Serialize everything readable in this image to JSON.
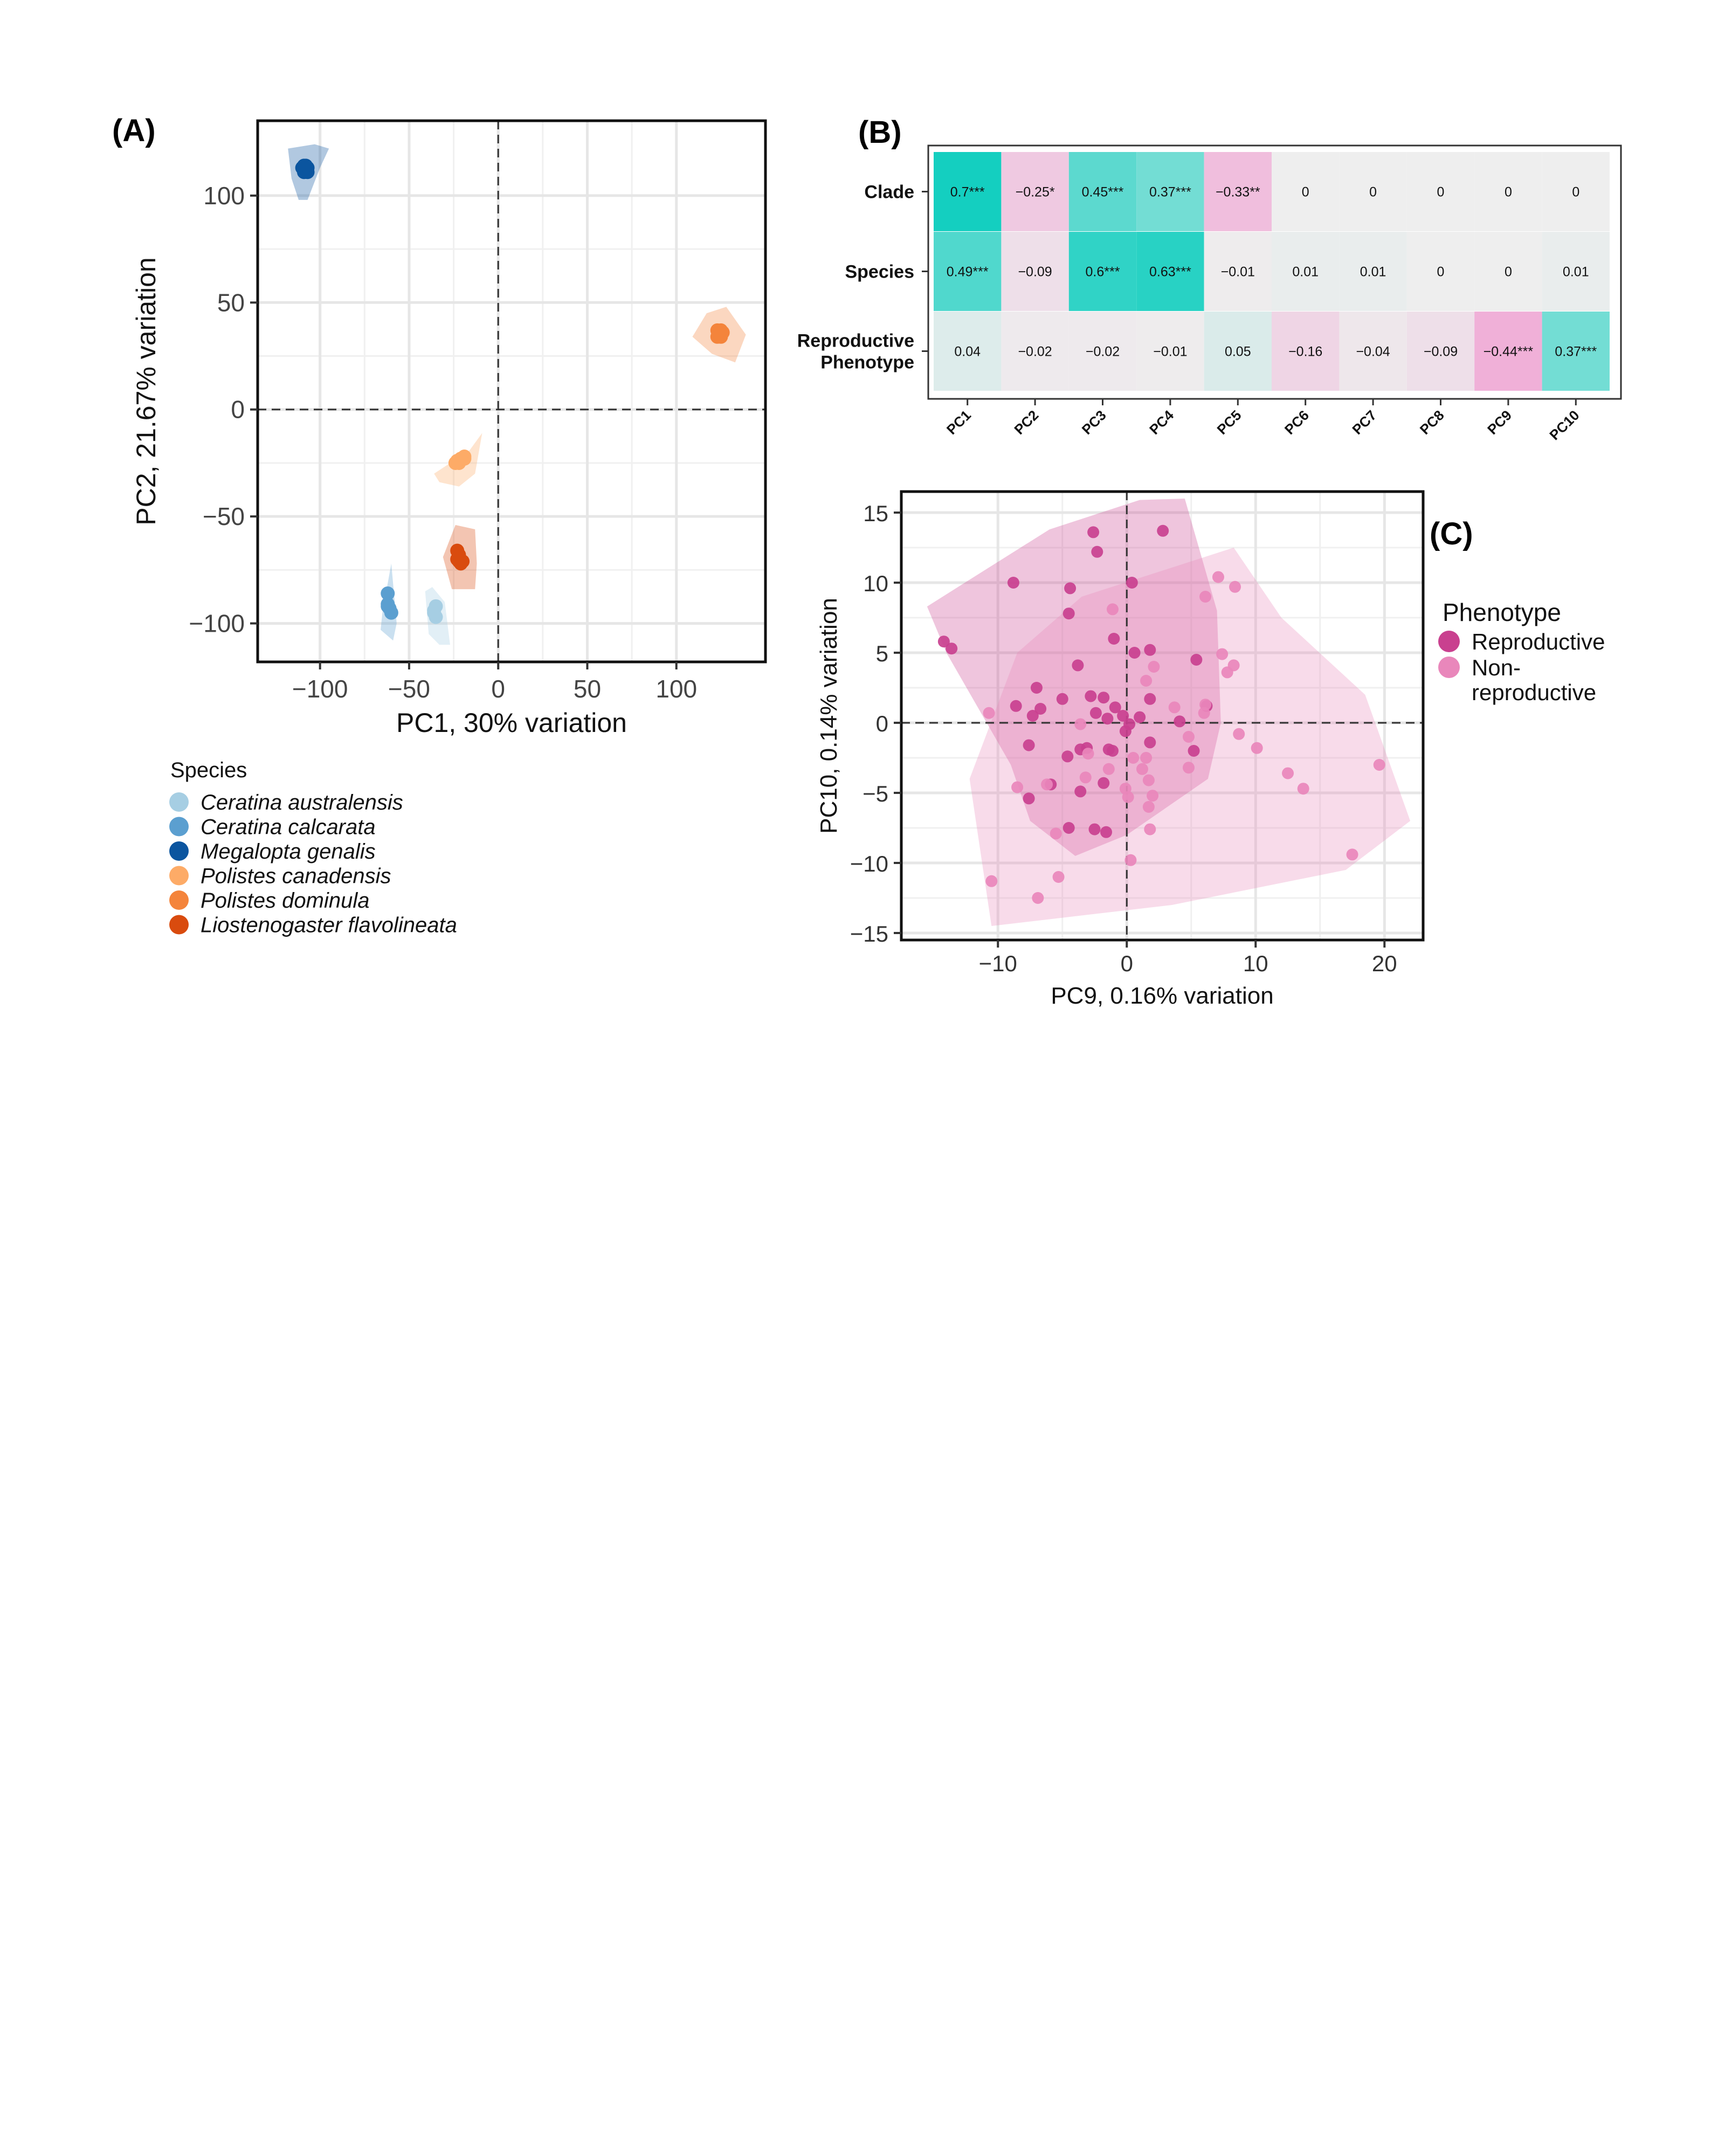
{
  "panel_labels": {
    "a": "(A)",
    "b": "(B)",
    "c": "(C)"
  },
  "chart_data": [
    {
      "panel": "A",
      "type": "scatter",
      "xlabel": "PC1, 30% variation",
      "ylabel": "PC2, 21.67% variation",
      "xlim": [
        -135,
        150
      ],
      "ylim": [
        -118,
        135
      ],
      "xticks": [
        -100,
        -50,
        0,
        50,
        100
      ],
      "xtick_labels": [
        "−100",
        "−50",
        "0",
        "50",
        "100"
      ],
      "yticks": [
        100,
        50,
        0,
        -50,
        -100
      ],
      "ytick_labels": [
        "100",
        "50",
        "0",
        "−50",
        "−100"
      ],
      "grid": true,
      "ref_lines": {
        "x": 0,
        "y": 0
      },
      "legend_title": "Species",
      "legend_position": "bottom-left",
      "series": [
        {
          "name": "Ceratina australensis",
          "color": "#a6cee3",
          "points": [
            [
              -36,
              -94
            ],
            [
              -35,
              -97
            ],
            [
              -35,
              -92
            ],
            [
              -36,
              -95
            ]
          ],
          "hull": [
            [
              -41,
              -85
            ],
            [
              -37,
              -83
            ],
            [
              -30,
              -90
            ],
            [
              -27,
              -110
            ],
            [
              -33,
              -110
            ],
            [
              -39,
              -105
            ]
          ]
        },
        {
          "name": "Ceratina calcarata",
          "color": "#5b9fd0",
          "points": [
            [
              -62,
              -86
            ],
            [
              -62,
              -91
            ],
            [
              -61,
              -93
            ],
            [
              -60,
              -95
            ],
            [
              -62,
              -92
            ]
          ],
          "hull": [
            [
              -60,
              -72
            ],
            [
              -57,
              -100
            ],
            [
              -59,
              -108
            ],
            [
              -66,
              -103
            ],
            [
              -65,
              -95
            ]
          ]
        },
        {
          "name": "Megalopta genalis",
          "color": "#0b559f",
          "points": [
            [
              -110,
              113
            ],
            [
              -107,
              113
            ],
            [
              -109,
              114
            ],
            [
              -107,
              111
            ],
            [
              -109,
              111
            ],
            [
              -108,
              114
            ]
          ],
          "hull": [
            [
              -118,
              122
            ],
            [
              -103,
              124
            ],
            [
              -95,
              122
            ],
            [
              -100,
              113
            ],
            [
              -107,
              98
            ],
            [
              -112,
              98
            ],
            [
              -116,
              108
            ]
          ]
        },
        {
          "name": "Polistes canadensis",
          "color": "#fdab67",
          "points": [
            [
              -19,
              -22
            ],
            [
              -22,
              -25
            ],
            [
              -24,
              -25
            ],
            [
              -19,
              -23
            ],
            [
              -23,
              -24
            ],
            [
              -21,
              -23
            ]
          ],
          "hull": [
            [
              -36,
              -30
            ],
            [
              -16,
              -19
            ],
            [
              -9,
              -11
            ],
            [
              -13,
              -30
            ],
            [
              -22,
              -36
            ],
            [
              -33,
              -34
            ]
          ]
        },
        {
          "name": "Polistes dominula",
          "color": "#f4843b",
          "points": [
            [
              123,
              37
            ],
            [
              125,
              34
            ],
            [
              124,
              36
            ],
            [
              126,
              36
            ],
            [
              123,
              34
            ],
            [
              125,
              37
            ]
          ],
          "hull": [
            [
              109,
              34
            ],
            [
              117,
              45
            ],
            [
              128,
              48
            ],
            [
              139,
              35
            ],
            [
              133,
              22
            ],
            [
              120,
              26
            ]
          ]
        },
        {
          "name": "Liostenogaster flavolineata",
          "color": "#d94b0e",
          "points": [
            [
              -23,
              -66
            ],
            [
              -22,
              -71
            ],
            [
              -21,
              -72
            ],
            [
              -23,
              -70
            ],
            [
              -22,
              -68
            ],
            [
              -20,
              -71
            ]
          ],
          "hull": [
            [
              -31,
              -69
            ],
            [
              -24,
              -54
            ],
            [
              -13,
              -56
            ],
            [
              -12,
              -72
            ],
            [
              -13,
              -84
            ],
            [
              -26,
              -84
            ]
          ]
        }
      ]
    },
    {
      "panel": "B",
      "type": "heatmap",
      "rows": [
        "Clade",
        "Species",
        "Reproductive Phenotype"
      ],
      "row_labels_display": [
        [
          "Clade"
        ],
        [
          "Species"
        ],
        [
          "Reproductive",
          "Phenotype"
        ]
      ],
      "columns": [
        "PC1",
        "PC2",
        "PC3",
        "PC4",
        "PC5",
        "PC6",
        "PC7",
        "PC8",
        "PC9",
        "PC10"
      ],
      "values": [
        [
          0.7,
          -0.25,
          0.45,
          0.37,
          -0.33,
          0,
          0,
          0,
          0,
          0
        ],
        [
          0.49,
          -0.09,
          0.6,
          0.63,
          -0.01,
          0.01,
          0.01,
          0,
          0,
          0.01
        ],
        [
          0.04,
          -0.02,
          -0.02,
          -0.01,
          0.05,
          -0.16,
          -0.04,
          -0.09,
          -0.44,
          0.37
        ]
      ],
      "labels": [
        [
          "0.7***",
          "−0.25*",
          "0.45***",
          "0.37***",
          "−0.33**",
          "0",
          "0",
          "0",
          "0",
          "0"
        ],
        [
          "0.49***",
          "−0.09",
          "0.6***",
          "0.63***",
          "−0.01",
          "0.01",
          "0.01",
          "0",
          "0",
          "0.01"
        ],
        [
          "0.04",
          "−0.02",
          "−0.02",
          "−0.01",
          "0.05",
          "−0.16",
          "−0.04",
          "−0.09",
          "−0.44***",
          "0.37***"
        ]
      ],
      "colors": {
        "positive": "#14cfc0",
        "neutral": "#eeeeee",
        "negative": "#f0b0d8"
      }
    },
    {
      "panel": "C",
      "type": "scatter",
      "xlabel": "PC9, 0.16% variation",
      "ylabel": "PC10, 0.14% variation",
      "xlim": [
        -17.5,
        23
      ],
      "ylim": [
        -15.5,
        16.5
      ],
      "xticks": [
        -10,
        0,
        10,
        20
      ],
      "xtick_labels": [
        "−10",
        "0",
        "10",
        "20"
      ],
      "yticks": [
        15,
        10,
        5,
        0,
        -5,
        -10,
        -15
      ],
      "ytick_labels": [
        "15",
        "10",
        "5",
        "0",
        "−5",
        "−10",
        "−15"
      ],
      "grid": true,
      "ref_lines": {
        "x": 0,
        "y": 0
      },
      "legend_title": "Phenotype",
      "legend_position": "right",
      "series": [
        {
          "name": "Reproductive",
          "label_lines": [
            "Reproductive"
          ],
          "color": "#c9408f",
          "hull": [
            [
              -15.5,
              8.3
            ],
            [
              -6.0,
              13.8
            ],
            [
              1.0,
              15.9
            ],
            [
              4.5,
              16.0
            ],
            [
              7.0,
              8.0
            ],
            [
              7.3,
              0.0
            ],
            [
              6.3,
              -4.0
            ],
            [
              0.0,
              -8.0
            ],
            [
              -4.0,
              -9.5
            ],
            [
              -7.5,
              -7.0
            ],
            [
              -9.0,
              -3.0
            ],
            [
              -14.0,
              5.0
            ]
          ],
          "points": [
            [
              -14.2,
              5.8
            ],
            [
              -13.6,
              5.3
            ],
            [
              -8.8,
              10.0
            ],
            [
              -4.5,
              7.8
            ],
            [
              -4.4,
              9.6
            ],
            [
              -2.6,
              13.6
            ],
            [
              -2.3,
              12.2
            ],
            [
              2.8,
              13.7
            ],
            [
              0.4,
              10.0
            ],
            [
              -1.0,
              6.0
            ],
            [
              0.6,
              5.0
            ],
            [
              1.8,
              5.2
            ],
            [
              -3.8,
              4.1
            ],
            [
              -7.0,
              2.5
            ],
            [
              -6.7,
              1.0
            ],
            [
              -8.6,
              1.2
            ],
            [
              -7.3,
              0.5
            ],
            [
              -5.0,
              1.7
            ],
            [
              -2.8,
              1.9
            ],
            [
              -1.8,
              1.8
            ],
            [
              -2.4,
              0.7
            ],
            [
              -1.5,
              0.3
            ],
            [
              -0.9,
              1.1
            ],
            [
              -0.3,
              0.5
            ],
            [
              0.2,
              -0.1
            ],
            [
              1.0,
              0.4
            ],
            [
              1.8,
              1.7
            ],
            [
              4.1,
              0.1
            ],
            [
              5.4,
              4.5
            ],
            [
              6.2,
              1.2
            ],
            [
              -7.6,
              -1.6
            ],
            [
              -4.6,
              -2.4
            ],
            [
              -3.6,
              -1.9
            ],
            [
              -3.1,
              -1.8
            ],
            [
              -1.4,
              -1.9
            ],
            [
              -1.1,
              -2.0
            ],
            [
              -0.1,
              -0.6
            ],
            [
              -5.9,
              -4.4
            ],
            [
              -3.6,
              -4.9
            ],
            [
              -4.5,
              -7.5
            ],
            [
              -1.6,
              -7.8
            ],
            [
              -2.5,
              -7.6
            ],
            [
              -7.6,
              -5.4
            ],
            [
              -1.8,
              -4.3
            ],
            [
              1.8,
              -1.4
            ],
            [
              5.2,
              -2.0
            ]
          ]
        },
        {
          "name": "Non-reproductive",
          "label_lines": [
            "Non-",
            "reproductive"
          ],
          "color": "#e987bb",
          "hull": [
            [
              -10.5,
              -14.5
            ],
            [
              -12.2,
              -4.0
            ],
            [
              -8.5,
              5.0
            ],
            [
              -3.5,
              9.0
            ],
            [
              8.3,
              12.5
            ],
            [
              12.0,
              7.5
            ],
            [
              18.5,
              2.0
            ],
            [
              22.0,
              -7.0
            ],
            [
              17.0,
              -10.5
            ],
            [
              3.5,
              -13.0
            ]
          ],
          "points": [
            [
              -10.7,
              0.7
            ],
            [
              -10.5,
              -11.3
            ],
            [
              -5.3,
              -11.0
            ],
            [
              -6.9,
              -12.5
            ],
            [
              -8.5,
              -4.6
            ],
            [
              -6.2,
              -4.4
            ],
            [
              -5.5,
              -7.9
            ],
            [
              -3.2,
              -3.9
            ],
            [
              -3.6,
              -0.1
            ],
            [
              -3.0,
              -2.2
            ],
            [
              -1.1,
              8.1
            ],
            [
              -1.4,
              -3.3
            ],
            [
              -0.1,
              -4.7
            ],
            [
              0.1,
              -5.3
            ],
            [
              0.3,
              -9.8
            ],
            [
              0.5,
              -2.5
            ],
            [
              1.2,
              -3.3
            ],
            [
              1.5,
              -2.5
            ],
            [
              1.7,
              -4.1
            ],
            [
              2.0,
              -5.2
            ],
            [
              1.8,
              -7.6
            ],
            [
              1.7,
              -6.0
            ],
            [
              2.1,
              4.0
            ],
            [
              1.5,
              3.0
            ],
            [
              3.7,
              1.1
            ],
            [
              4.8,
              -1.0
            ],
            [
              4.8,
              -3.2
            ],
            [
              6.1,
              9.0
            ],
            [
              7.1,
              10.4
            ],
            [
              7.4,
              4.9
            ],
            [
              8.4,
              9.7
            ],
            [
              7.8,
              3.6
            ],
            [
              8.3,
              4.1
            ],
            [
              6.0,
              0.7
            ],
            [
              6.1,
              1.3
            ],
            [
              8.7,
              -0.8
            ],
            [
              10.1,
              -1.8
            ],
            [
              12.5,
              -3.6
            ],
            [
              13.7,
              -4.7
            ],
            [
              17.5,
              -9.4
            ],
            [
              19.6,
              -3.0
            ]
          ]
        }
      ]
    }
  ]
}
